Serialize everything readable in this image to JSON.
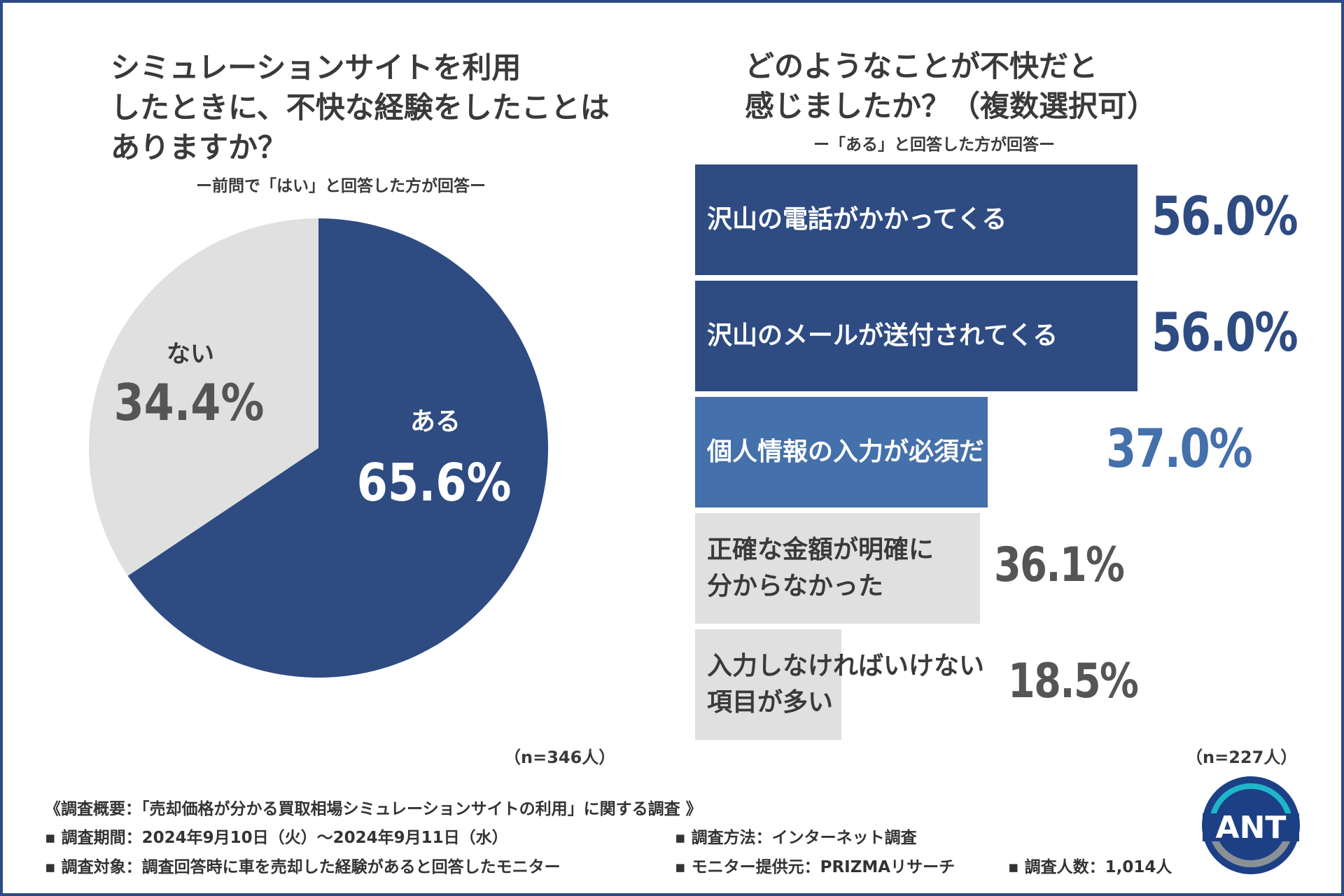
{
  "left_chart": {
    "title_lines": [
      "シミュレーションサイトを利用",
      "したときに、不快な経験をしたことは",
      "ありますか？"
    ],
    "subtitle": "ー前問で「はい」と回答した方が回答ー",
    "sample": "（n=346人）"
  },
  "right_chart": {
    "title_lines": [
      "どのようなことが不快だと",
      "感じましたか？（複数選択可）"
    ],
    "subtitle": "ー「ある」と回答した方が回答ー",
    "sample": "（n=227人）"
  },
  "chart_data": [
    {
      "type": "pie",
      "title": "シミュレーションサイトを利用したときに、不快な経験をしたことはありますか？",
      "categories": [
        "ある",
        "ない"
      ],
      "values": [
        65.6,
        34.4
      ],
      "value_labels": [
        "65.6%",
        "34.4%"
      ],
      "colors": [
        "#2e4b82",
        "#e0e0e0"
      ]
    },
    {
      "type": "bar",
      "title": "どのようなことが不快だと感じましたか？（複数選択可）",
      "categories": [
        "沢山の電話がかかってくる",
        "沢山のメールが送付されてくる",
        "個人情報の入力が必須だった",
        "正確な金額が明確に\n分からなかった",
        "入力しなければいけない\n項目が多い"
      ],
      "values": [
        56.0,
        56.0,
        37.0,
        36.1,
        18.5
      ],
      "value_labels": [
        "56.0%",
        "56.0%",
        "37.0%",
        "36.1%",
        "18.5%"
      ],
      "colors": [
        "#2e4b82",
        "#2e4b82",
        "#4470ab",
        "#e0e0e0",
        "#e0e0e0"
      ],
      "xlim": [
        0,
        56.0
      ]
    }
  ],
  "footer": {
    "line1": "《調査概要：「売却価格が分かる買取相場シミュレーションサイトの利用」に関する調査 》",
    "period": "▪ 調査期間：2024年9月10日（火）～2024年9月11日（水）",
    "method": "▪ 調査方法：インターネット調査",
    "target": "▪ 調査対象：調査回答時に車を売却した経験があると回答したモニター",
    "provider": "▪ モニター提供元：PRIZMAリサーチ",
    "count": "▪ 調査人数：1,014人"
  },
  "logo": {
    "text": "ANT",
    "colors": [
      "#1c3f86",
      "#1fb5c8",
      "#8a9196"
    ]
  }
}
